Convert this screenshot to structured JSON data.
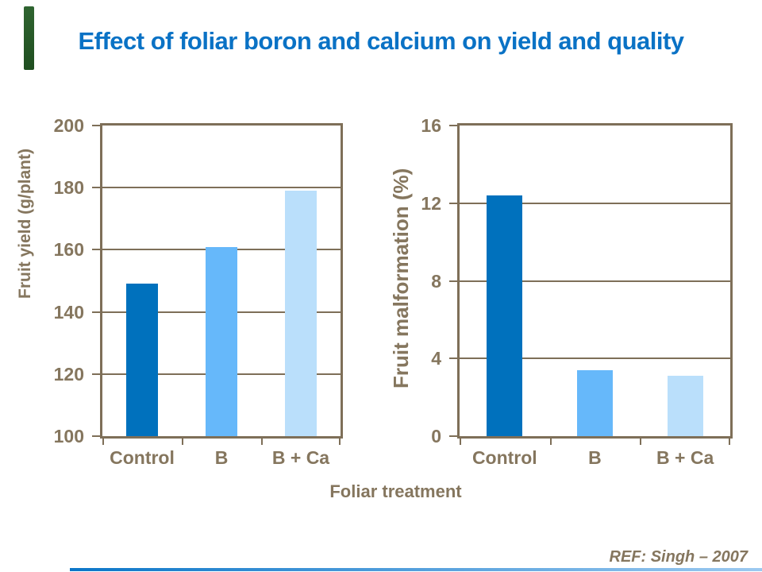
{
  "slide": {
    "title": "Effect of foliar boron and calcium on yield and quality",
    "shared_xlabel": "Foliar treatment",
    "reference": "REF:  Singh – 2007"
  },
  "colors": {
    "title_text": "#0A72C5",
    "axis_text": "#85765E",
    "axis_line": "#7E6F58",
    "bars": [
      "#0071BD",
      "#66B8FA",
      "#BADFFB"
    ],
    "accent_green": "#2F6430",
    "bottom_rule_left": "#0B76C8",
    "bottom_rule_right": "#9CC9F0"
  },
  "chart_data": [
    {
      "type": "bar",
      "title": "",
      "categories": [
        "Control",
        "B",
        "B + Ca"
      ],
      "values": [
        149,
        161,
        179
      ],
      "xlabel": "Foliar treatment",
      "ylabel": "Fruit yield (g/plant)",
      "ylim": [
        100,
        200
      ],
      "yticks": [
        100,
        120,
        140,
        160,
        180,
        200
      ],
      "grid": true,
      "legend": false
    },
    {
      "type": "bar",
      "title": "",
      "categories": [
        "Control",
        "B",
        "B + Ca"
      ],
      "values": [
        12.4,
        3.4,
        3.1
      ],
      "xlabel": "Foliar treatment",
      "ylabel": "Fruit malformation (%)",
      "ylim": [
        0,
        16
      ],
      "yticks": [
        0,
        4,
        8,
        12,
        16
      ],
      "grid": true,
      "legend": false
    }
  ]
}
